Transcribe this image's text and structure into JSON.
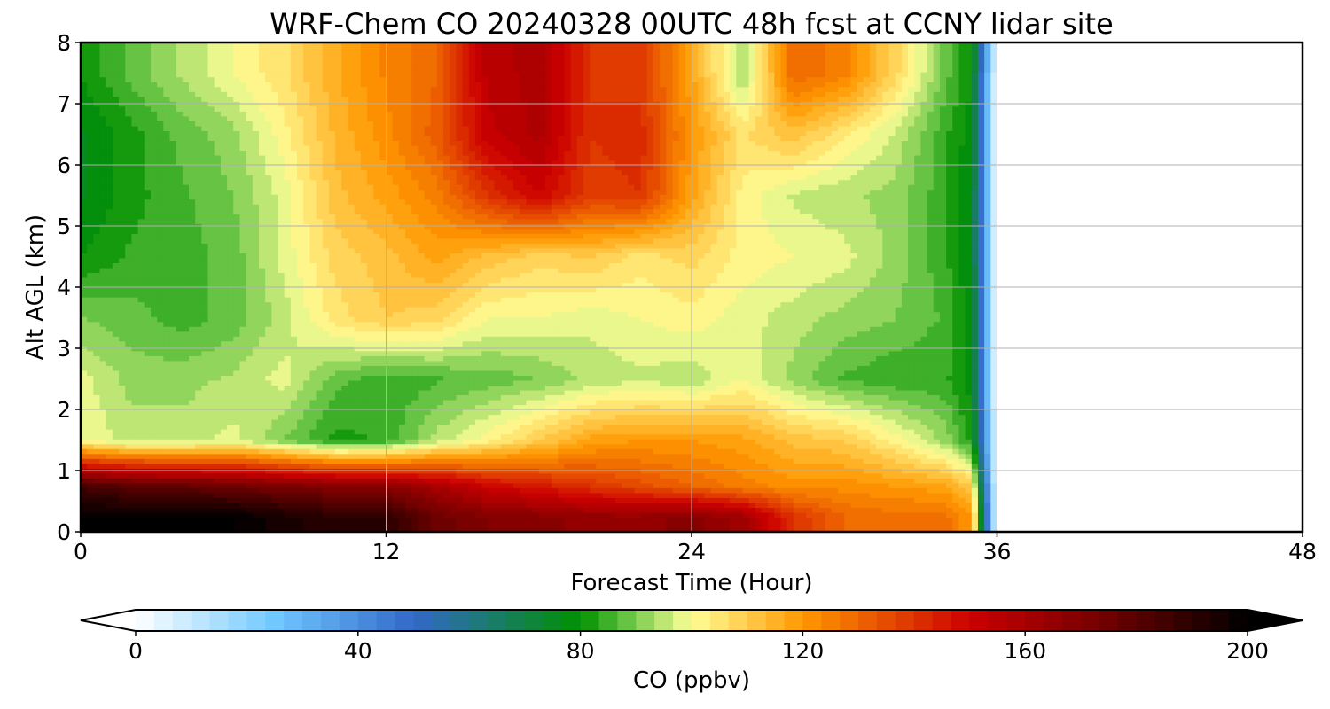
{
  "chart_data": {
    "type": "heatmap",
    "title": "WRF-Chem CO  20240328 00UTC 48h fcst at CCNY lidar site",
    "xlabel": "Forecast Time (Hour)",
    "ylabel": "Alt AGL (km)",
    "xlim": [
      0,
      48
    ],
    "ylim": [
      0,
      8
    ],
    "xticks": [
      "0",
      "12",
      "24",
      "36",
      "48"
    ],
    "yticks": [
      "0",
      "1",
      "2",
      "3",
      "4",
      "5",
      "6",
      "7",
      "8"
    ],
    "grid": true,
    "data_end_hour": 36,
    "x": [
      0,
      2,
      4,
      6,
      8,
      10,
      12,
      14,
      16,
      18,
      20,
      22,
      24,
      26,
      28,
      30,
      32,
      34,
      35
    ],
    "y": [
      0.25,
      0.75,
      1.5,
      2.5,
      3.5,
      4.5,
      5.5,
      6.5,
      7.5
    ],
    "z": [
      [
        200,
        200,
        200,
        200,
        195,
        190,
        190,
        175,
        170,
        168,
        165,
        165,
        168,
        162,
        140,
        130,
        128,
        128,
        120
      ],
      [
        185,
        180,
        178,
        175,
        172,
        170,
        168,
        160,
        150,
        145,
        140,
        135,
        130,
        125,
        122,
        122,
        120,
        118,
        110
      ],
      [
        100,
        95,
        95,
        98,
        90,
        82,
        84,
        95,
        102,
        110,
        118,
        120,
        120,
        118,
        112,
        110,
        102,
        92,
        82
      ],
      [
        98,
        92,
        92,
        94,
        98,
        88,
        84,
        86,
        88,
        90,
        94,
        96,
        94,
        100,
        92,
        86,
        84,
        84,
        78
      ],
      [
        90,
        88,
        85,
        88,
        95,
        105,
        110,
        108,
        100,
        100,
        98,
        100,
        102,
        98,
        95,
        92,
        90,
        86,
        78
      ],
      [
        80,
        84,
        85,
        88,
        98,
        108,
        112,
        118,
        112,
        108,
        110,
        105,
        108,
        102,
        100,
        98,
        92,
        84,
        76
      ],
      [
        76,
        82,
        86,
        90,
        98,
        112,
        118,
        125,
        140,
        150,
        138,
        140,
        118,
        102,
        96,
        94,
        92,
        84,
        76
      ],
      [
        76,
        82,
        88,
        92,
        102,
        114,
        122,
        132,
        152,
        158,
        140,
        142,
        120,
        106,
        112,
        104,
        96,
        84,
        78
      ],
      [
        80,
        88,
        94,
        100,
        106,
        116,
        124,
        130,
        155,
        158,
        140,
        138,
        118,
        92,
        130,
        125,
        108,
        88,
        80
      ]
    ],
    "colorbar": {
      "label": "CO  (ppbv)",
      "min": 0,
      "max": 200,
      "ticks": [
        "0",
        "40",
        "80",
        "120",
        "160",
        "200"
      ],
      "extend": "both",
      "levels": 60
    },
    "colormap_stops": [
      [
        0,
        "#ffffff"
      ],
      [
        25,
        "#70c8ff"
      ],
      [
        50,
        "#3268c8"
      ],
      [
        80,
        "#009000"
      ],
      [
        90,
        "#7ccd50"
      ],
      [
        100,
        "#ffff98"
      ],
      [
        120,
        "#ff9800"
      ],
      [
        150,
        "#cc0000"
      ],
      [
        175,
        "#6e0000"
      ],
      [
        200,
        "#000000"
      ]
    ]
  }
}
